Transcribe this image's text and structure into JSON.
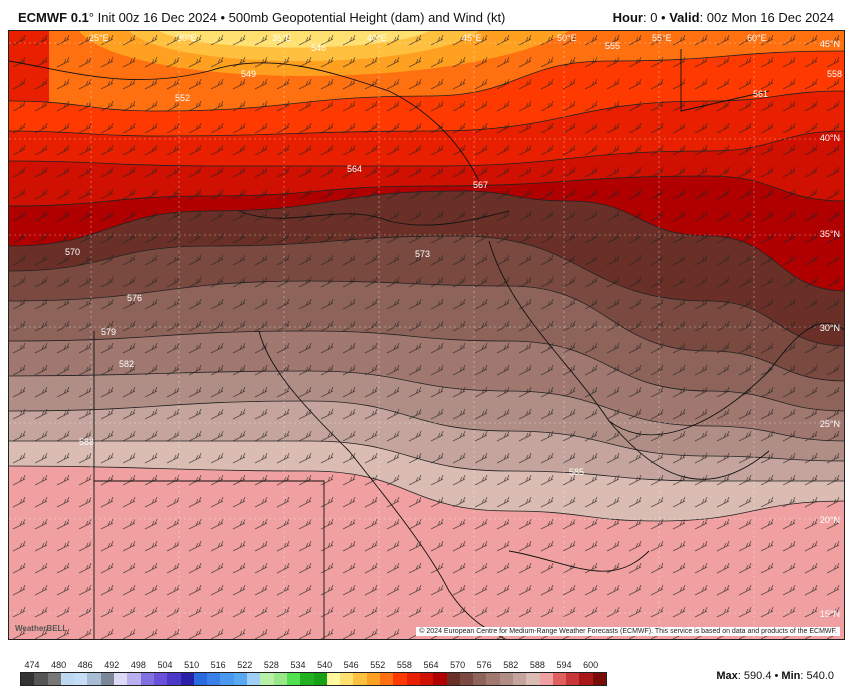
{
  "header": {
    "model": "ECMWF 0.1",
    "degree": "°",
    "init": " Init 00z 16 Dec 2024 • 500mb Geopotential Height (dam) and Wind (kt)",
    "hour_label": "Hour",
    "hour_value": ": 0 • ",
    "valid_label": "Valid",
    "valid_value": ": 00z Mon 16 Dec 2024"
  },
  "map": {
    "lon_labels": [
      "25°E",
      "30°E",
      "35°E",
      "40°E",
      "45°E",
      "50°E",
      "55°E",
      "60°E"
    ],
    "lat_labels": [
      "45°N",
      "40°N",
      "35°N",
      "30°N",
      "25°N",
      "20°N",
      "15°N"
    ],
    "contour_labels": [
      "546",
      "549",
      "552",
      "555",
      "558",
      "561",
      "564",
      "567",
      "570",
      "573",
      "576",
      "579",
      "582",
      "585",
      "588"
    ],
    "credit": "© 2024 European Centre for Medium-Range Weather Forecasts (ECMWF). This service is based on data and products of the ECMWF.",
    "logo": "WeatherBELL"
  },
  "colorbar": {
    "ticks": [
      "474",
      "480",
      "486",
      "492",
      "498",
      "504",
      "510",
      "516",
      "522",
      "528",
      "534",
      "540",
      "546",
      "552",
      "558",
      "564",
      "570",
      "576",
      "582",
      "588",
      "594",
      "600"
    ],
    "colors": [
      "#333333",
      "#555555",
      "#777777",
      "#bcd8f2",
      "#c5ddf5",
      "#a8bcd6",
      "#7a8899",
      "#dcdaf5",
      "#b8b0f0",
      "#8070e0",
      "#6a50d8",
      "#4a38c8",
      "#2a20a8",
      "#2a6ae0",
      "#3a80e8",
      "#4a98f0",
      "#5aa8f0",
      "#a0d0f8",
      "#b8f0a8",
      "#98e888",
      "#50e050",
      "#20b020",
      "#18a018",
      "#fffaa0",
      "#ffe070",
      "#ffc040",
      "#ffa020",
      "#ff7010",
      "#ff3a00",
      "#e82000",
      "#d01000",
      "#b00000",
      "#6a3028",
      "#7a4a40",
      "#8e645a",
      "#a07870",
      "#b08e86",
      "#c4a49c",
      "#dabcb2",
      "#f0a0a0",
      "#e06060",
      "#c83838",
      "#a81818",
      "#7a0c06"
    ]
  },
  "stats": {
    "max_label": "Max",
    "max_value": ": 590.4 • ",
    "min_label": "Min",
    "min_value": ": 540.0"
  }
}
